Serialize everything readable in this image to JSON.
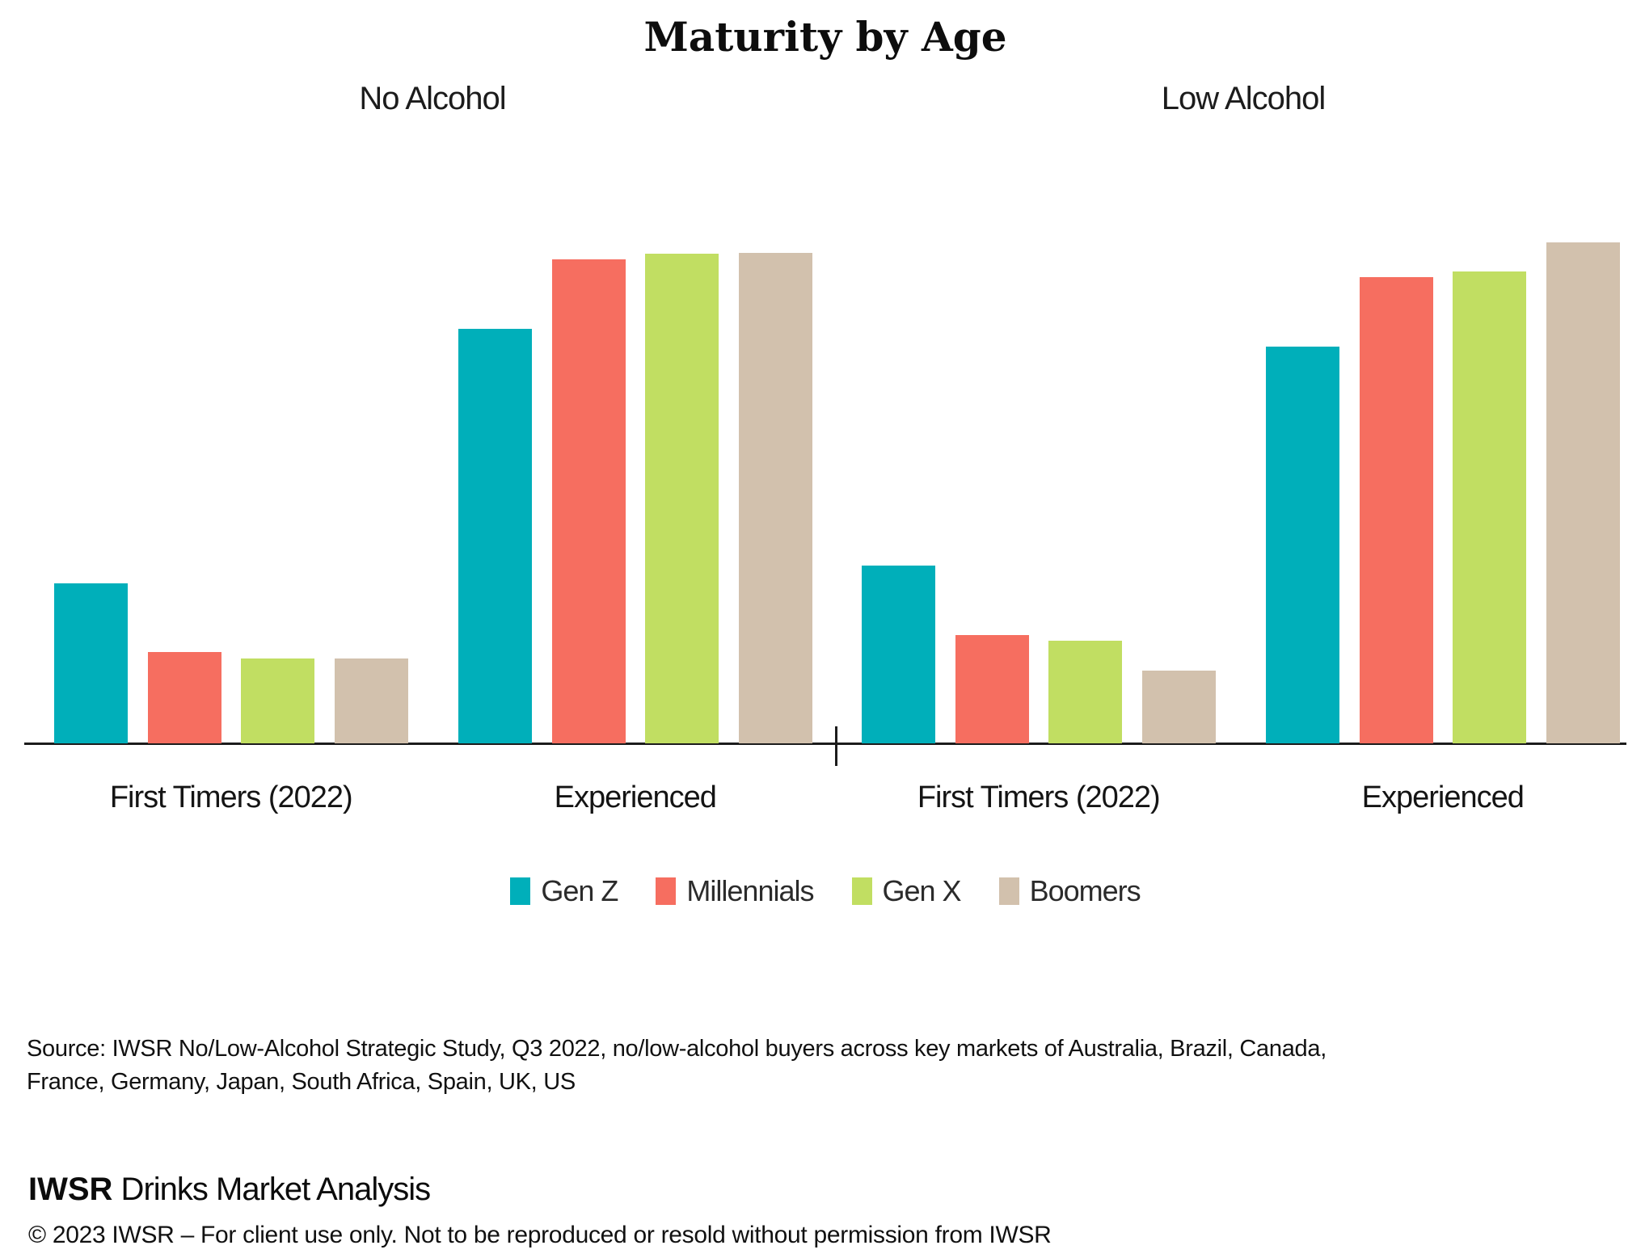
{
  "title": "Maturity by Age",
  "chart_data": [
    {
      "type": "bar",
      "title": "No Alcohol",
      "categories": [
        "First Timers (2022)",
        "Experienced"
      ],
      "series": [
        {
          "name": "Gen Z",
          "color": "#00AFBA",
          "values": [
            31.9,
            82.7
          ]
        },
        {
          "name": "Millennials",
          "color": "#F66E60",
          "values": [
            18.2,
            96.6
          ]
        },
        {
          "name": "Gen X",
          "color": "#C1DE62",
          "values": [
            16.9,
            97.7
          ]
        },
        {
          "name": "Boomers",
          "color": "#D2C1AD",
          "values": [
            16.9,
            97.9
          ]
        }
      ],
      "xlabel": "",
      "ylabel": "",
      "ylim": [
        0,
        100
      ],
      "unit": "relative bar height (tallest bar across both panels = 100; no value axis shown)",
      "grid": false,
      "y_axis_visible": false,
      "legend_position": "bottom"
    },
    {
      "type": "bar",
      "title": "Low Alcohol",
      "categories": [
        "First Timers (2022)",
        "Experienced"
      ],
      "series": [
        {
          "name": "Gen Z",
          "color": "#00AFBA",
          "values": [
            35.5,
            79.2
          ]
        },
        {
          "name": "Millennials",
          "color": "#F66E60",
          "values": [
            21.6,
            93.1
          ]
        },
        {
          "name": "Gen X",
          "color": "#C1DE62",
          "values": [
            20.5,
            94.2
          ]
        },
        {
          "name": "Boomers",
          "color": "#D2C1AD",
          "values": [
            14.5,
            100
          ]
        }
      ],
      "xlabel": "",
      "ylabel": "",
      "ylim": [
        0,
        100
      ],
      "unit": "relative bar height (tallest bar across both panels = 100; no value axis shown)",
      "grid": false,
      "y_axis_visible": false,
      "legend_position": "bottom"
    }
  ],
  "legend": {
    "items": [
      {
        "label": "Gen Z",
        "color": "#00AFBA"
      },
      {
        "label": "Millennials",
        "color": "#F66E60"
      },
      {
        "label": "Gen X",
        "color": "#C1DE62"
      },
      {
        "label": "Boomers",
        "color": "#D2C1AD"
      }
    ]
  },
  "source": {
    "line1": "Source: IWSR No/Low-Alcohol Strategic Study, Q3 2022, no/low-alcohol buyers across key markets of Australia, Brazil, Canada,",
    "line2": "France, Germany, Japan, South Africa, Spain, UK, US"
  },
  "footer": {
    "brand_bold": "IWSR",
    "brand_rest": " Drinks Market Analysis",
    "copyright": "© 2023 IWSR – For client use only. Not to be reproduced or resold without permission from IWSR"
  },
  "axis_color": "#1c1c1c"
}
